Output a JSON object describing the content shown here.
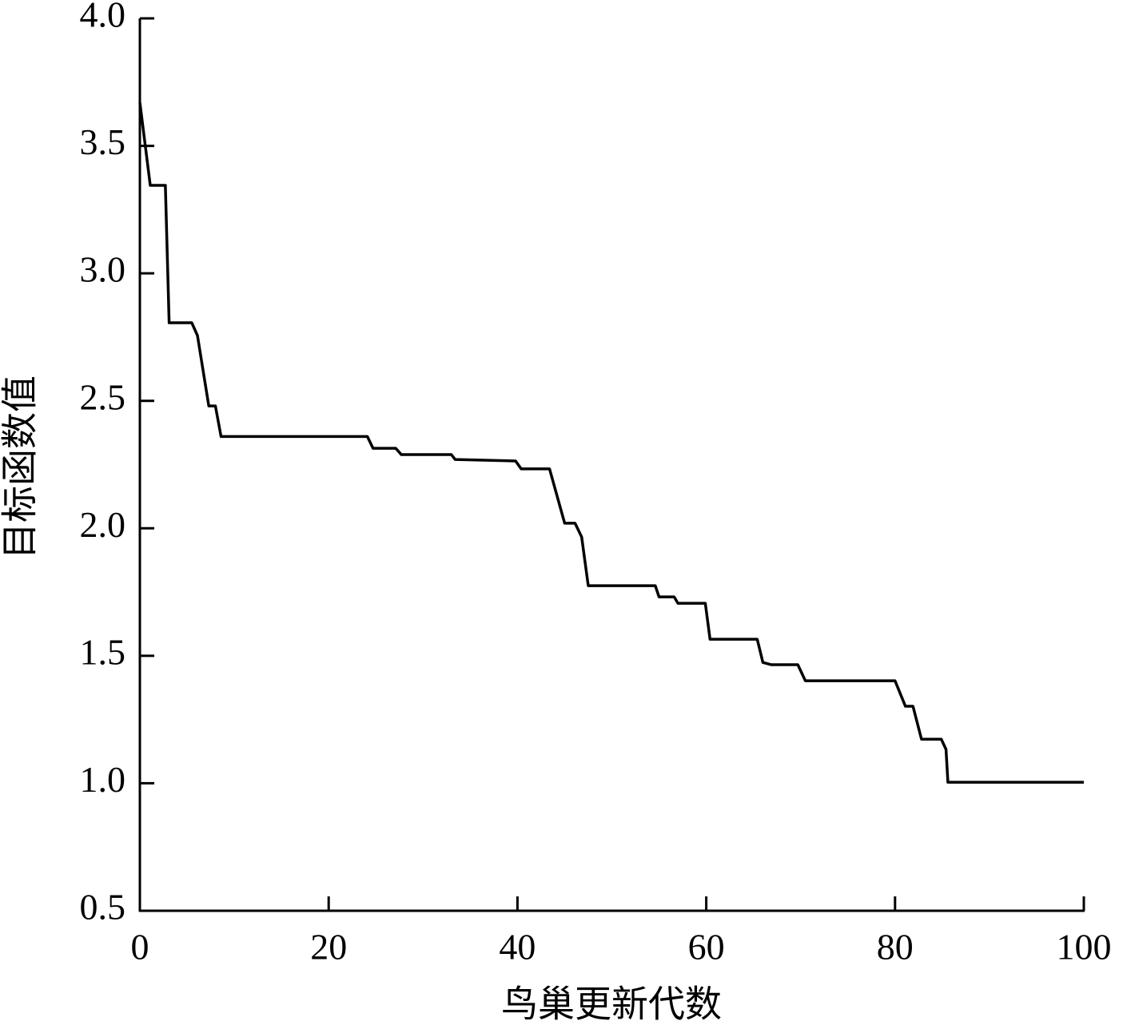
{
  "chart_data": {
    "type": "line",
    "x_label": "鸟巢更新代数",
    "y_label": "目标函数值",
    "x": [
      0,
      1.1,
      2.7,
      3.1,
      5.5,
      6.1,
      7.3,
      8.0,
      8.6,
      24.1,
      24.7,
      27.1,
      27.7,
      33.0,
      33.4,
      39.8,
      40.4,
      43.4,
      45.0,
      46.1,
      46.8,
      47.5,
      54.6,
      55.0,
      56.6,
      57.0,
      59.9,
      60.4,
      65.4,
      66.0,
      66.9,
      69.7,
      70.5,
      80.0,
      81.1,
      81.9,
      82.8,
      84.9,
      85.4,
      85.6,
      100
    ],
    "series": [
      {
        "color": "#000000",
        "values": [
          3.67,
          3.345,
          3.345,
          2.806,
          2.806,
          2.756,
          2.48,
          2.48,
          2.36,
          2.36,
          2.314,
          2.314,
          2.289,
          2.289,
          2.27,
          2.264,
          2.233,
          2.233,
          2.02,
          2.02,
          1.966,
          1.775,
          1.775,
          1.731,
          1.731,
          1.706,
          1.706,
          1.565,
          1.565,
          1.474,
          1.465,
          1.465,
          1.402,
          1.402,
          1.302,
          1.302,
          1.173,
          1.173,
          1.133,
          1.004,
          1.004
        ]
      }
    ],
    "xlim": [
      0,
      100
    ],
    "xticks": [
      0,
      20,
      40,
      60,
      80,
      100
    ],
    "ylim": [
      0.5,
      4.0
    ],
    "yticks": [
      {
        "value": 0.5,
        "label": "0.5"
      },
      {
        "value": 1,
        "label": "1.0"
      },
      {
        "value": 1.5,
        "label": "1.5"
      },
      {
        "value": 2,
        "label": "2.0"
      },
      {
        "value": 2.5,
        "label": "2.5"
      },
      {
        "value": 3,
        "label": "3.0"
      },
      {
        "value": 3.5,
        "label": "3.5"
      },
      {
        "value": 4,
        "label": "4.0"
      }
    ],
    "grid": false
  }
}
